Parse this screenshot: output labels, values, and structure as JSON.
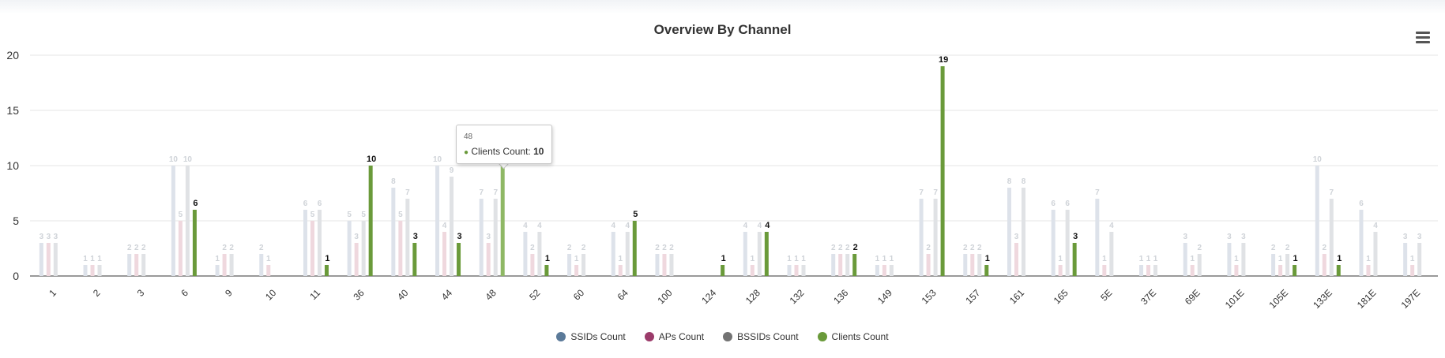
{
  "chart_data": {
    "type": "bar",
    "title": "Overview By Channel",
    "xlabel": "",
    "ylabel": "",
    "ylim": [
      0,
      20
    ],
    "yticks": [
      "0",
      "5",
      "10",
      "15",
      "20"
    ],
    "grid": true,
    "legend_position": "bottom-center",
    "categories": [
      "1",
      "2",
      "3",
      "6",
      "9",
      "10",
      "11",
      "36",
      "40",
      "44",
      "48",
      "52",
      "60",
      "64",
      "100",
      "124",
      "128",
      "132",
      "136",
      "149",
      "153",
      "157",
      "161",
      "165",
      "5E",
      "37E",
      "69E",
      "101E",
      "105E",
      "133E",
      "181E",
      "197E"
    ],
    "series": [
      {
        "name": "SSIDs Count",
        "color": "#5b7a99",
        "values": [
          3,
          1,
          2,
          10,
          1,
          2,
          6,
          5,
          8,
          10,
          7,
          4,
          2,
          4,
          2,
          null,
          4,
          1,
          2,
          1,
          7,
          2,
          8,
          6,
          7,
          1,
          3,
          3,
          2,
          10,
          6,
          3
        ]
      },
      {
        "name": "APs Count",
        "color": "#9b3b6a",
        "values": [
          3,
          1,
          2,
          5,
          2,
          1,
          5,
          3,
          5,
          4,
          3,
          2,
          1,
          1,
          2,
          null,
          1,
          1,
          2,
          1,
          2,
          2,
          3,
          1,
          1,
          1,
          1,
          1,
          1,
          2,
          1,
          1
        ]
      },
      {
        "name": "BSSIDs Count",
        "color": "#737373",
        "values": [
          3,
          1,
          2,
          10,
          2,
          null,
          6,
          5,
          7,
          9,
          7,
          4,
          2,
          4,
          2,
          null,
          4,
          1,
          2,
          1,
          7,
          2,
          8,
          6,
          4,
          1,
          2,
          3,
          2,
          7,
          4,
          3
        ]
      },
      {
        "name": "Clients Count",
        "color": "#6a9a3a",
        "values": [
          null,
          null,
          null,
          6,
          null,
          null,
          1,
          10,
          3,
          3,
          10,
          1,
          null,
          5,
          null,
          1,
          4,
          null,
          2,
          null,
          19,
          1,
          null,
          3,
          null,
          null,
          null,
          null,
          1,
          1,
          null,
          null
        ]
      }
    ]
  },
  "tooltip": {
    "category": "48",
    "series_label": "Clients Count: ",
    "value": "10",
    "bullet": "●"
  },
  "legend": [
    {
      "label": "SSIDs Count",
      "color": "#5b7a99"
    },
    {
      "label": "APs Count",
      "color": "#9b3b6a"
    },
    {
      "label": "BSSIDs Count",
      "color": "#737373"
    },
    {
      "label": "Clients Count",
      "color": "#6a9a3a"
    }
  ],
  "menu_icon": "hamburger-menu-icon"
}
